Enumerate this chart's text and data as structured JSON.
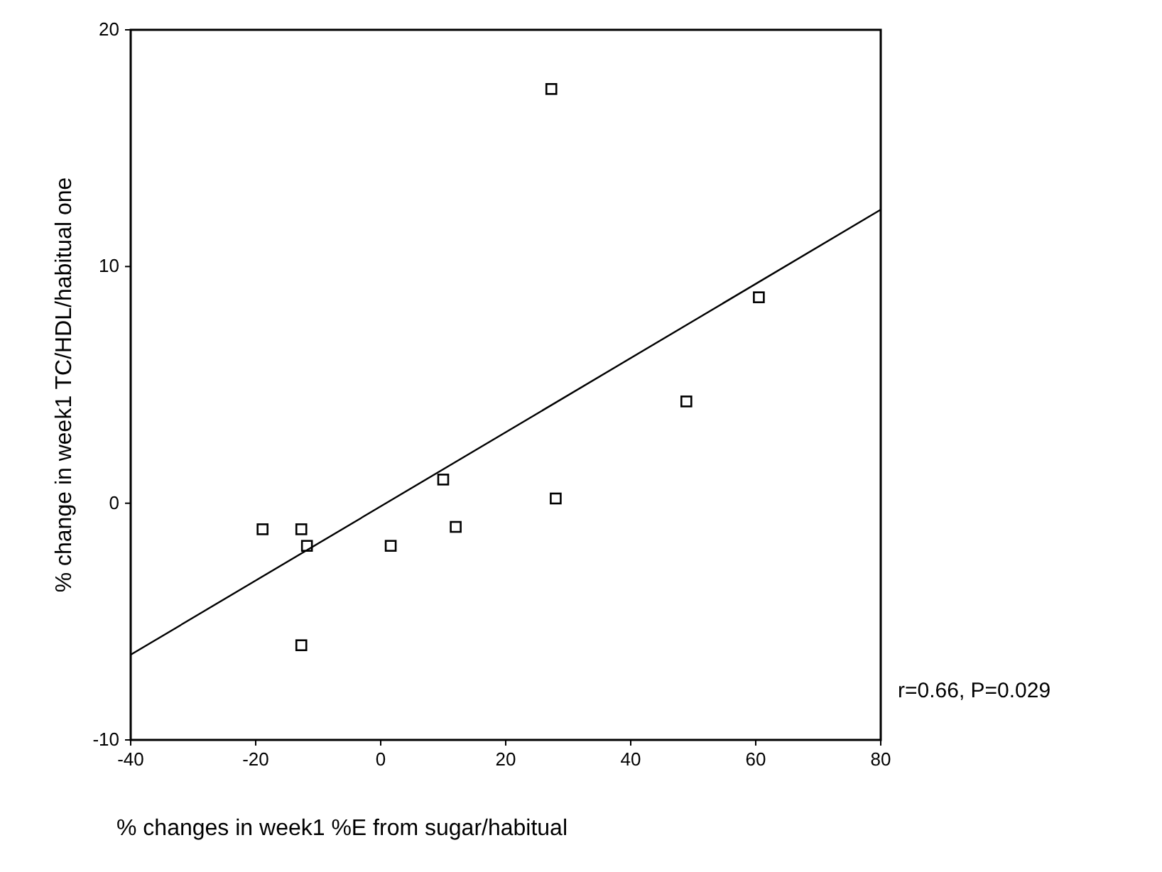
{
  "chart_data": {
    "type": "scatter",
    "xlabel": "% changes in week1 %E from sugar/habitual",
    "ylabel": "% change in week1 TC/HDL/habitual one",
    "xlim": [
      -40,
      80
    ],
    "xticks": [
      -40,
      -20,
      0,
      20,
      40,
      60,
      80
    ],
    "ylim": [
      -10,
      20
    ],
    "yticks": [
      -10,
      0,
      10,
      20
    ],
    "grid": false,
    "annotations": [
      "r=0.66, P=0.029"
    ],
    "series": [
      {
        "marker": "square",
        "color": "#000000",
        "x": [
          -18.9,
          -12.7,
          -11.8,
          1.6,
          10,
          12,
          27.3,
          28,
          48.9,
          60.5,
          -12.7
        ],
        "values": [
          -1.1,
          -1.1,
          -1.8,
          -1.8,
          1.0,
          -1.0,
          17.5,
          0.2,
          4.3,
          8.7,
          -6.0
        ]
      },
      {
        "type": "line",
        "color": "#000000",
        "x": [
          -40,
          80
        ],
        "values": [
          -6.4,
          12.4
        ]
      }
    ]
  }
}
